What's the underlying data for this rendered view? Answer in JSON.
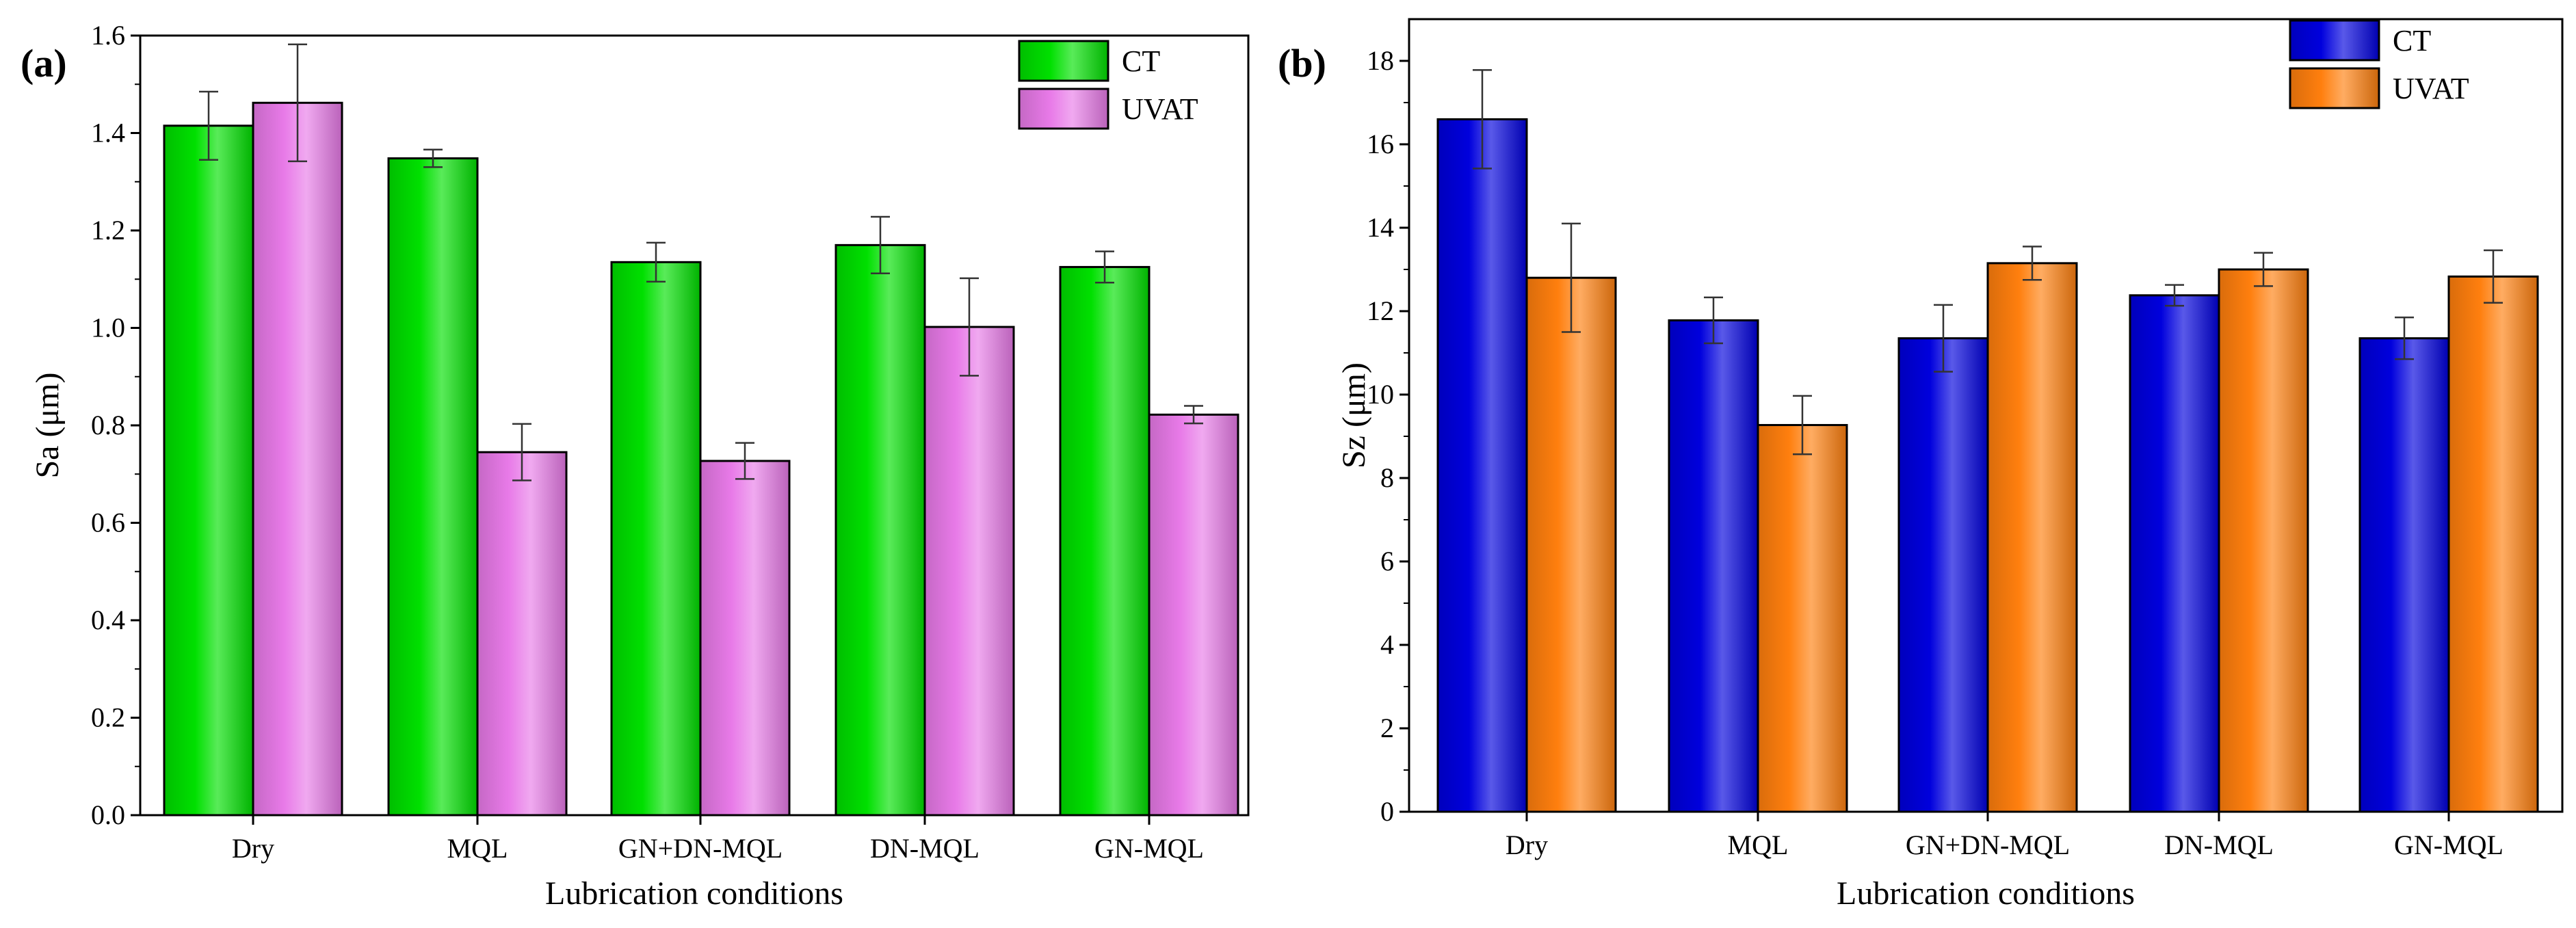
{
  "chart_data": [
    {
      "type": "bar",
      "panel_label": "(a)",
      "title": "",
      "xlabel": "Lubrication conditions",
      "ylabel": "Sa (μm)",
      "ylim": [
        0,
        1.6
      ],
      "yticks": [
        0.0,
        0.2,
        0.4,
        0.6,
        0.8,
        1.0,
        1.2,
        1.4,
        1.6
      ],
      "ytick_labels": [
        "0.0",
        "0.2",
        "0.4",
        "0.6",
        "0.8",
        "1.0",
        "1.2",
        "1.4",
        "1.6"
      ],
      "categories": [
        "Dry",
        "MQL",
        "GN+DN-MQL",
        "DN-MQL",
        "GN-MQL"
      ],
      "legend_position": "top-right",
      "grid": false,
      "series": [
        {
          "name": "CT",
          "color": "#00e000",
          "values": [
            1.415,
            1.348,
            1.135,
            1.17,
            1.125
          ],
          "errors": [
            0.07,
            0.018,
            0.04,
            0.058,
            0.032
          ]
        },
        {
          "name": "UVAT",
          "color": "#e87ae8",
          "values": [
            1.462,
            0.745,
            0.727,
            1.002,
            0.822
          ],
          "errors": [
            0.12,
            0.058,
            0.037,
            0.1,
            0.018
          ]
        }
      ]
    },
    {
      "type": "bar",
      "panel_label": "(b)",
      "title": "",
      "xlabel": "Lubrication conditions",
      "ylabel": "Sz (μm)",
      "ylim": [
        0,
        19
      ],
      "yticks": [
        0,
        2,
        4,
        6,
        8,
        10,
        12,
        14,
        16,
        18
      ],
      "ytick_labels": [
        "0",
        "2",
        "4",
        "6",
        "8",
        "10",
        "12",
        "14",
        "16",
        "18"
      ],
      "categories": [
        "Dry",
        "MQL",
        "GN+DN-MQL",
        "DN-MQL",
        "GN-MQL"
      ],
      "legend_position": "top-right",
      "grid": false,
      "series": [
        {
          "name": "CT",
          "color": "#0000dd",
          "values": [
            16.6,
            11.78,
            11.35,
            12.38,
            11.35
          ],
          "errors": [
            1.18,
            0.55,
            0.8,
            0.25,
            0.5
          ]
        },
        {
          "name": "UVAT",
          "color": "#ff7f0e",
          "values": [
            12.8,
            9.27,
            13.15,
            13.0,
            12.83
          ],
          "errors": [
            1.3,
            0.7,
            0.4,
            0.4,
            0.63
          ]
        }
      ]
    }
  ]
}
